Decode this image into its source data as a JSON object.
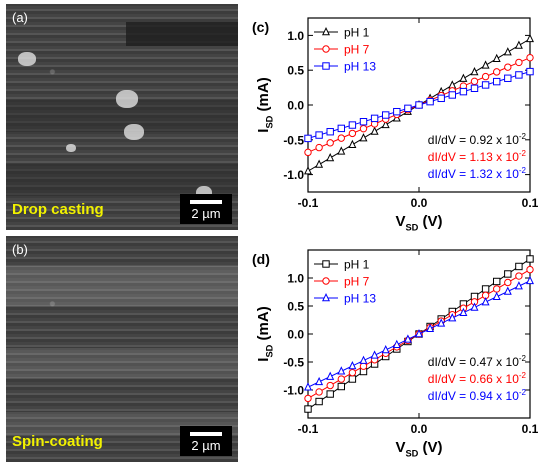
{
  "panels": {
    "a": {
      "label": "(a)",
      "method": "Drop casting",
      "scale": "2 µm"
    },
    "b": {
      "label": "(b)",
      "method": "Spin-coating",
      "scale": "2 µm"
    }
  },
  "chart_data": [
    {
      "type": "line",
      "panel_label": "(c)",
      "xlabel": "V",
      "xlabel_sub": "SD",
      "xlabel_unit": " (V)",
      "ylabel": "I",
      "ylabel_sub": "SD",
      "ylabel_unit": " (mA)",
      "xlim": [
        -0.1,
        0.1
      ],
      "ylim": [
        -1.25,
        1.25
      ],
      "xticks": [
        -0.1,
        0.0,
        0.1
      ],
      "xtick_labels": [
        "-0.1",
        "0.0",
        "0.1"
      ],
      "yticks": [
        -1.0,
        -0.5,
        0.0,
        0.5,
        1.0
      ],
      "ytick_labels": [
        "-1.0",
        "-0.5",
        "0.0",
        "0.5",
        "1.0"
      ],
      "legend_position": "top-left",
      "series": [
        {
          "name": "pH 1",
          "color": "#000000",
          "marker": "triangle",
          "slope_mA_per_V": 9.5
        },
        {
          "name": "pH 7",
          "color": "#ff0000",
          "marker": "circle",
          "slope_mA_per_V": 6.8
        },
        {
          "name": "pH 13",
          "color": "#0000ff",
          "marker": "square",
          "slope_mA_per_V": 4.8
        }
      ],
      "x_points": [
        -0.1,
        -0.09,
        -0.08,
        -0.07,
        -0.06,
        -0.05,
        -0.04,
        -0.03,
        -0.02,
        -0.01,
        0.0,
        0.01,
        0.02,
        0.03,
        0.04,
        0.05,
        0.06,
        0.07,
        0.08,
        0.09,
        0.1
      ],
      "annotations": [
        {
          "text": "dI/dV = 0.92 x 10",
          "sup": "-2",
          "color": "#000000"
        },
        {
          "text": "dI/dV = 1.13 x 10",
          "sup": "-2",
          "color": "#ff0000"
        },
        {
          "text": "dI/dV = 1.32 x 10",
          "sup": "-2",
          "color": "#0000ff"
        }
      ]
    },
    {
      "type": "line",
      "panel_label": "(d)",
      "xlabel": "V",
      "xlabel_sub": "SD",
      "xlabel_unit": " (V)",
      "ylabel": "I",
      "ylabel_sub": "SD",
      "ylabel_unit": " (mA)",
      "xlim": [
        -0.1,
        0.1
      ],
      "ylim": [
        -1.5,
        1.5
      ],
      "xticks": [
        -0.1,
        0.0,
        0.1
      ],
      "xtick_labels": [
        "-0.1",
        "0.0",
        "0.1"
      ],
      "yticks": [
        -1.0,
        -0.5,
        0.0,
        0.5,
        1.0
      ],
      "ytick_labels": [
        "-1.0",
        "-0.5",
        "0.0",
        "0.5",
        "1.0"
      ],
      "legend_position": "top-left",
      "series": [
        {
          "name": "pH 1",
          "color": "#000000",
          "marker": "square",
          "slope_mA_per_V": 13.4
        },
        {
          "name": "pH 7",
          "color": "#ff0000",
          "marker": "circle",
          "slope_mA_per_V": 11.5
        },
        {
          "name": "pH 13",
          "color": "#0000ff",
          "marker": "triangle",
          "slope_mA_per_V": 9.5
        }
      ],
      "x_points": [
        -0.1,
        -0.09,
        -0.08,
        -0.07,
        -0.06,
        -0.05,
        -0.04,
        -0.03,
        -0.02,
        -0.01,
        0.0,
        0.01,
        0.02,
        0.03,
        0.04,
        0.05,
        0.06,
        0.07,
        0.08,
        0.09,
        0.1
      ],
      "annotations": [
        {
          "text": "dI/dV = 0.47 x 10",
          "sup": "-2",
          "color": "#000000"
        },
        {
          "text": "dI/dV = 0.66 x 10",
          "sup": "-2",
          "color": "#ff0000"
        },
        {
          "text": "dI/dV = 0.94 x 10",
          "sup": "-2",
          "color": "#0000ff"
        }
      ]
    }
  ]
}
